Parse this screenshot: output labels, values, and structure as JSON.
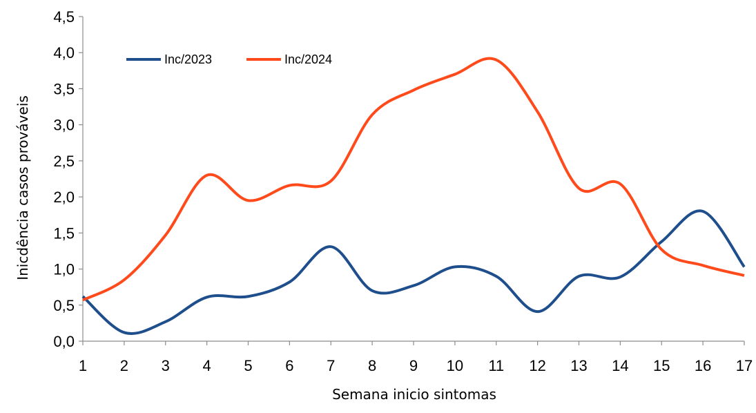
{
  "chart_data": {
    "type": "line",
    "title": "",
    "xlabel": "Semana inicio sintomas",
    "ylabel": "Inicdência casos prováveis",
    "x": [
      1,
      2,
      3,
      4,
      5,
      6,
      7,
      8,
      9,
      10,
      11,
      12,
      13,
      14,
      15,
      16,
      17
    ],
    "x_tick_labels": [
      "1",
      "2",
      "3",
      "4",
      "5",
      "6",
      "7",
      "8",
      "9",
      "10",
      "11",
      "12",
      "13",
      "14",
      "15",
      "16",
      "17"
    ],
    "ylim": [
      0,
      4.5
    ],
    "y_ticks": [
      0,
      0.5,
      1.0,
      1.5,
      2.0,
      2.5,
      3.0,
      3.5,
      4.0,
      4.5
    ],
    "y_tick_labels": [
      "0,0",
      "0,5",
      "1,0",
      "1,5",
      "2,0",
      "2,5",
      "3,0",
      "3,5",
      "4,0",
      "4,5"
    ],
    "grid": false,
    "smooth": true,
    "legend_position": "top-left",
    "series": [
      {
        "name": "Inc/2023",
        "color": "#1F4E8C",
        "values": [
          0.62,
          0.12,
          0.27,
          0.61,
          0.62,
          0.82,
          1.31,
          0.7,
          0.77,
          1.03,
          0.9,
          0.41,
          0.9,
          0.89,
          1.38,
          1.8,
          1.03
        ]
      },
      {
        "name": "Inc/2024",
        "color": "#FF4A1C",
        "values": [
          0.57,
          0.85,
          1.47,
          2.3,
          1.95,
          2.16,
          2.22,
          3.14,
          3.48,
          3.7,
          3.9,
          3.18,
          2.12,
          2.18,
          1.27,
          1.05,
          0.91
        ]
      }
    ]
  }
}
